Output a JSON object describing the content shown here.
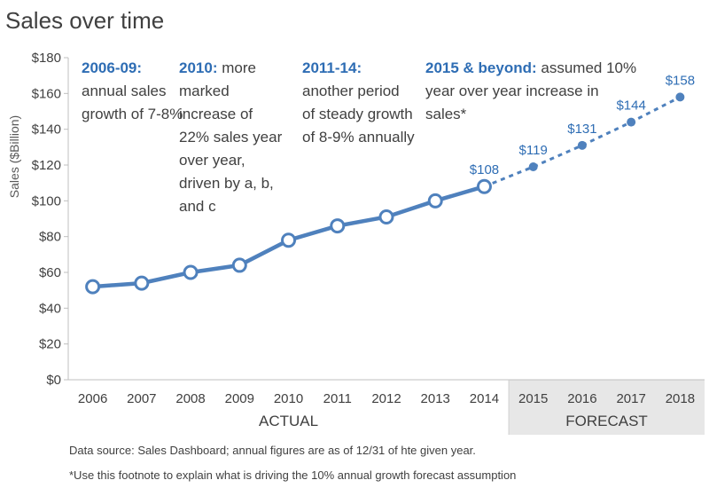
{
  "title": "Sales over time",
  "chart_data": {
    "type": "line",
    "title": "Sales over time",
    "xlabel": "",
    "ylabel": "Sales ($Billion)",
    "ylim": [
      0,
      180
    ],
    "yticks": [
      "$0",
      "$20",
      "$40",
      "$60",
      "$80",
      "$100",
      "$120",
      "$140",
      "$160",
      "$180"
    ],
    "categories": [
      "2006",
      "2007",
      "2008",
      "2009",
      "2010",
      "2011",
      "2012",
      "2013",
      "2014",
      "2015",
      "2016",
      "2017",
      "2018"
    ],
    "series": [
      {
        "values": [
          52,
          54,
          60,
          64,
          78,
          86,
          91,
          100,
          108,
          null,
          null,
          null,
          null
        ],
        "style": "solid"
      },
      {
        "values": [
          null,
          null,
          null,
          null,
          null,
          null,
          null,
          null,
          108,
          119,
          131,
          144,
          158
        ],
        "style": "dashed"
      }
    ],
    "data_labels": [
      {
        "index": 8,
        "text": "$108"
      },
      {
        "index": 9,
        "text": "$119"
      },
      {
        "index": 10,
        "text": "$131"
      },
      {
        "index": 11,
        "text": "$144"
      },
      {
        "index": 12,
        "text": "$158"
      }
    ],
    "groups": [
      {
        "label": "ACTUAL",
        "from": 0,
        "to": 8
      },
      {
        "label": "FORECAST",
        "from": 9,
        "to": 12
      }
    ],
    "colors": {
      "line": "#4f81bd",
      "label": "#2e6db4",
      "forecast_band": "#e7e7e7",
      "axis": "#bfbfbf"
    }
  },
  "annotations": [
    {
      "head": "2006-09:",
      "body": "annual sales growth of 7-8%"
    },
    {
      "head": "2010:",
      "body": "more marked increase of 22% sales year over year, driven by a, b, and c"
    },
    {
      "head": "2011-14:",
      "body": "another period of steady growth of 8-9% annually"
    },
    {
      "head": "2015 & beyond:",
      "body": "assumed 10% year over year increase in sales*"
    }
  ],
  "footnotes": [
    "Data source: Sales Dashboard; annual figures are as of 12/31 of hte given year.",
    "*Use this footnote to explain what is driving the 10% annual growth forecast assumption"
  ]
}
